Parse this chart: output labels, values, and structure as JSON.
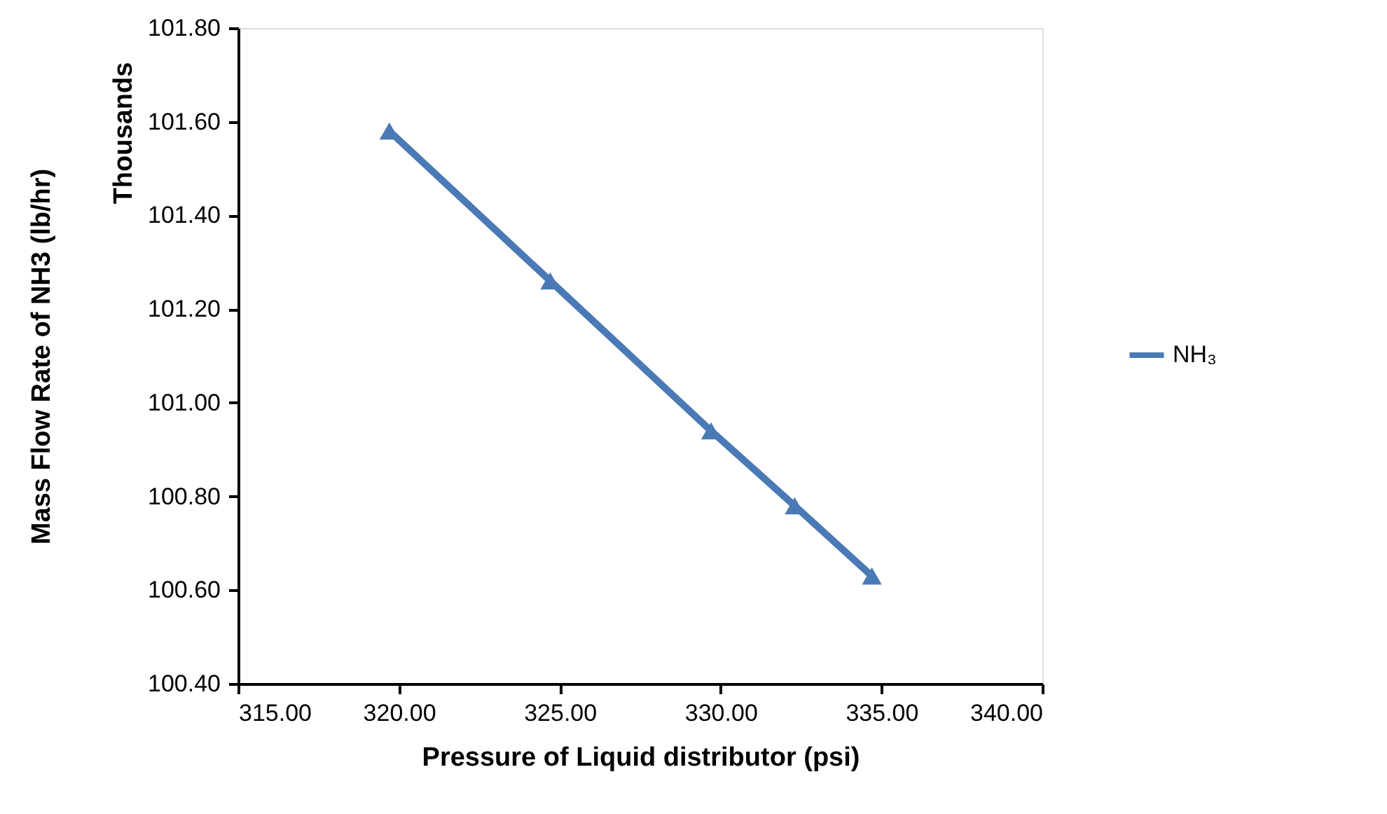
{
  "chart_data": {
    "type": "line",
    "xlabel": "Pressure of Liquid distributor (psi)",
    "ylabel": "Mass Flow Rate of NH3 (lb/hr)",
    "annotations": [
      "Thousands"
    ],
    "x": [
      319.7,
      324.7,
      329.7,
      332.3,
      334.7
    ],
    "series": [
      {
        "name": "NH₃",
        "color": "#4a7ab5",
        "values": [
          101.58,
          101.26,
          100.94,
          100.78,
          100.63
        ]
      }
    ],
    "xlim": [
      315,
      340
    ],
    "xticks": [
      {
        "value": 315,
        "label": "315.00"
      },
      {
        "value": 320,
        "label": "320.00"
      },
      {
        "value": 325,
        "label": "325.00"
      },
      {
        "value": 330,
        "label": "330.00"
      },
      {
        "value": 335,
        "label": "335.00"
      },
      {
        "value": 340,
        "label": "340.00"
      }
    ],
    "ylim": [
      100.4,
      101.8
    ],
    "yticks": [
      {
        "value": 100.4,
        "label": "100.40"
      },
      {
        "value": 100.6,
        "label": "100.60"
      },
      {
        "value": 100.8,
        "label": "100.80"
      },
      {
        "value": 101.0,
        "label": "101.00"
      },
      {
        "value": 101.2,
        "label": "101.20"
      },
      {
        "value": 101.4,
        "label": "101.40"
      },
      {
        "value": 101.6,
        "label": "101.60"
      },
      {
        "value": 101.8,
        "label": "101.80"
      }
    ],
    "grid": false,
    "legend": "right",
    "marker": "triangle",
    "line_style": "solid"
  }
}
